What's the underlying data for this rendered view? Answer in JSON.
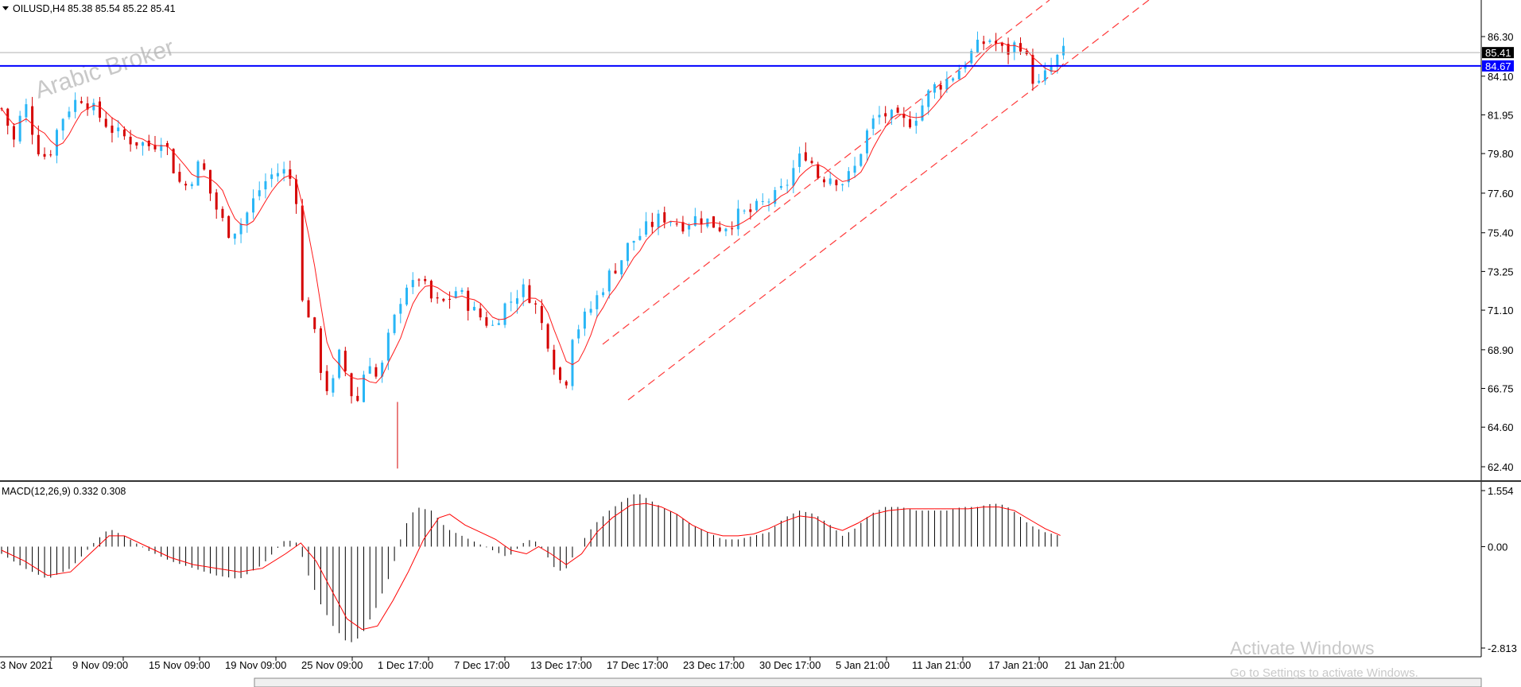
{
  "header": {
    "symbol_label": "OILUSD,H4",
    "ohlc": "85.38 85.54 85.22 85.41"
  },
  "watermark": "Arabic Broker",
  "activation": {
    "title": "Activate Windows",
    "subtitle": "Go to Settings to activate Windows."
  },
  "colors": {
    "bull": "#29b6f6",
    "bear": "#d50000",
    "ma": "#ff1a1a",
    "hline": "#0000ff",
    "channel": "#ff3b3b",
    "histogram": "#000000",
    "signal": "#ff0000"
  },
  "chart_data": [
    {
      "type": "candlestick",
      "symbol": "OILUSD",
      "timeframe": "H4",
      "ylim": [
        62.4,
        87.2
      ],
      "y_ticks": [
        "86.30",
        "84.10",
        "81.95",
        "79.80",
        "77.60",
        "75.40",
        "73.25",
        "71.10",
        "68.90",
        "66.75",
        "64.60",
        "62.40"
      ],
      "x_ticks": [
        "3 Nov 2021",
        "9 Nov 09:00",
        "15 Nov 09:00",
        "19 Nov 09:00",
        "25 Nov 09:00",
        "1 Dec 17:00",
        "7 Dec 17:00",
        "13 Dec 17:00",
        "17 Dec 17:00",
        "23 Dec 17:00",
        "30 Dec 17:00",
        "5 Jan 21:00",
        "11 Jan 21:00",
        "17 Jan 21:00",
        "21 Jan 21:00"
      ],
      "last_price": 85.41,
      "last_price_label": "85.41",
      "horizontal_line": 84.67,
      "horizontal_line_label": "84.67",
      "moving_average": true,
      "close_path": [
        [
          0,
          82.3
        ],
        [
          8,
          80.5
        ],
        [
          15,
          82.7
        ],
        [
          23,
          80.2
        ],
        [
          30,
          79.5
        ],
        [
          38,
          81.6
        ],
        [
          45,
          82.5
        ],
        [
          53,
          83.0
        ],
        [
          60,
          82.2
        ],
        [
          68,
          81.5
        ],
        [
          75,
          80.9
        ],
        [
          83,
          80.6
        ],
        [
          90,
          80.4
        ],
        [
          98,
          80.2
        ],
        [
          105,
          80.8
        ],
        [
          112,
          79.0
        ],
        [
          118,
          77.8
        ],
        [
          124,
          78.5
        ],
        [
          130,
          79.4
        ],
        [
          136,
          77.6
        ],
        [
          142,
          76.3
        ],
        [
          148,
          75.5
        ],
        [
          154,
          75.7
        ],
        [
          160,
          76.5
        ],
        [
          166,
          77.5
        ],
        [
          170,
          78.1
        ],
        [
          176,
          78.6
        ],
        [
          183,
          78.9
        ],
        [
          188,
          78.4
        ],
        [
          192,
          77.4
        ],
        [
          194,
          74.0
        ],
        [
          196,
          71.5
        ],
        [
          199,
          70.8
        ],
        [
          202,
          71.3
        ],
        [
          205,
          68.8
        ],
        [
          209,
          67.6
        ],
        [
          213,
          66.5
        ],
        [
          217,
          67.2
        ],
        [
          221,
          69.0
        ],
        [
          225,
          67.3
        ],
        [
          229,
          66.2
        ],
        [
          232,
          66.1
        ],
        [
          236,
          67.6
        ],
        [
          241,
          68.5
        ],
        [
          245,
          67.0
        ],
        [
          249,
          68.3
        ],
        [
          253,
          69.9
        ],
        [
          257,
          70.8
        ],
        [
          261,
          72.1
        ],
        [
          265,
          72.7
        ],
        [
          269,
          72.3
        ],
        [
          272,
          73.0
        ],
        [
          276,
          72.3
        ],
        [
          280,
          71.7
        ],
        [
          285,
          71.4
        ],
        [
          290,
          71.6
        ],
        [
          296,
          72.2
        ],
        [
          302,
          71.7
        ],
        [
          308,
          71.0
        ],
        [
          314,
          70.6
        ],
        [
          320,
          70.2
        ],
        [
          327,
          71.3
        ],
        [
          333,
          71.7
        ],
        [
          338,
          72.3
        ],
        [
          343,
          72.1
        ],
        [
          348,
          71.3
        ],
        [
          352,
          70.3
        ],
        [
          356,
          69.4
        ],
        [
          360,
          68.2
        ],
        [
          364,
          67.2
        ],
        [
          368,
          67.3
        ],
        [
          372,
          69.8
        ],
        [
          378,
          70.4
        ],
        [
          384,
          71.2
        ],
        [
          391,
          72.3
        ],
        [
          397,
          73.2
        ],
        [
          403,
          73.8
        ],
        [
          409,
          74.8
        ],
        [
          415,
          75.2
        ],
        [
          421,
          75.7
        ],
        [
          427,
          76.1
        ],
        [
          433,
          76.3
        ],
        [
          439,
          76.0
        ],
        [
          445,
          75.9
        ],
        [
          451,
          76.2
        ],
        [
          457,
          76.2
        ],
        [
          463,
          75.9
        ],
        [
          469,
          75.7
        ],
        [
          475,
          76.0
        ],
        [
          481,
          76.4
        ],
        [
          487,
          76.5
        ],
        [
          493,
          76.8
        ],
        [
          499,
          77.2
        ],
        [
          505,
          77.4
        ],
        [
          511,
          78.0
        ],
        [
          515,
          78.8
        ],
        [
          520,
          79.5
        ],
        [
          525,
          79.9
        ],
        [
          529,
          79.1
        ],
        [
          533,
          78.4
        ],
        [
          538,
          78.6
        ],
        [
          543,
          78.5
        ],
        [
          547,
          78.2
        ],
        [
          551,
          78.4
        ],
        [
          556,
          79.0
        ],
        [
          560,
          80.0
        ],
        [
          565,
          81.2
        ],
        [
          570,
          81.8
        ],
        [
          575,
          82.0
        ],
        [
          580,
          81.8
        ],
        [
          585,
          81.6
        ],
        [
          589,
          81.5
        ],
        [
          594,
          81.7
        ],
        [
          600,
          82.5
        ],
        [
          606,
          83.4
        ],
        [
          612,
          83.7
        ],
        [
          618,
          84.0
        ],
        [
          624,
          84.5
        ],
        [
          630,
          85.2
        ],
        [
          636,
          85.7
        ],
        [
          642,
          86.1
        ],
        [
          646,
          86.2
        ],
        [
          650,
          85.6
        ],
        [
          655,
          85.4
        ],
        [
          659,
          85.8
        ],
        [
          664,
          85.9
        ],
        [
          668,
          85.0
        ],
        [
          672,
          84.0
        ],
        [
          676,
          83.6
        ],
        [
          680,
          84.1
        ],
        [
          684,
          84.6
        ],
        [
          688,
          85.1
        ],
        [
          692,
          85.4
        ]
      ]
    },
    {
      "type": "bar",
      "name": "MACD(12,26,9)",
      "indicator_label": "MACD(12,26,9) 0.332 0.308",
      "main_value": 0.332,
      "signal_value": 0.308,
      "ylim": [
        -2.813,
        1.554
      ],
      "y_ticks": [
        "1.554",
        "0.00",
        "-2.813"
      ],
      "histogram_path": [
        [
          0,
          -0.2
        ],
        [
          15,
          -0.6
        ],
        [
          30,
          -0.9
        ],
        [
          45,
          -0.6
        ],
        [
          60,
          0.1
        ],
        [
          70,
          0.5
        ],
        [
          80,
          0.3
        ],
        [
          95,
          -0.1
        ],
        [
          110,
          -0.4
        ],
        [
          125,
          -0.6
        ],
        [
          140,
          -0.8
        ],
        [
          155,
          -0.9
        ],
        [
          170,
          -0.5
        ],
        [
          185,
          0.2
        ],
        [
          193,
          0.1
        ],
        [
          200,
          -0.8
        ],
        [
          208,
          -1.6
        ],
        [
          216,
          -2.2
        ],
        [
          226,
          -2.7
        ],
        [
          234,
          -2.5
        ],
        [
          244,
          -1.7
        ],
        [
          254,
          -0.7
        ],
        [
          262,
          0.5
        ],
        [
          270,
          1.1
        ],
        [
          280,
          1.0
        ],
        [
          290,
          0.5
        ],
        [
          300,
          0.3
        ],
        [
          310,
          0.1
        ],
        [
          320,
          -0.1
        ],
        [
          330,
          -0.3
        ],
        [
          340,
          0.1
        ],
        [
          345,
          0.2
        ],
        [
          350,
          0.1
        ],
        [
          356,
          -0.3
        ],
        [
          362,
          -0.7
        ],
        [
          368,
          -0.6
        ],
        [
          376,
          0.0
        ],
        [
          386,
          0.6
        ],
        [
          396,
          1.0
        ],
        [
          406,
          1.3
        ],
        [
          414,
          1.5
        ],
        [
          422,
          1.3
        ],
        [
          430,
          1.1
        ],
        [
          440,
          0.9
        ],
        [
          450,
          0.6
        ],
        [
          460,
          0.4
        ],
        [
          470,
          0.2
        ],
        [
          480,
          0.2
        ],
        [
          490,
          0.3
        ],
        [
          500,
          0.4
        ],
        [
          510,
          0.8
        ],
        [
          520,
          1.0
        ],
        [
          530,
          0.9
        ],
        [
          540,
          0.6
        ],
        [
          548,
          0.3
        ],
        [
          556,
          0.5
        ],
        [
          566,
          0.9
        ],
        [
          576,
          1.1
        ],
        [
          586,
          1.1
        ],
        [
          596,
          1.0
        ],
        [
          606,
          1.0
        ],
        [
          616,
          1.0
        ],
        [
          626,
          1.1
        ],
        [
          636,
          1.1
        ],
        [
          646,
          1.2
        ],
        [
          654,
          1.15
        ],
        [
          662,
          0.9
        ],
        [
          670,
          0.6
        ],
        [
          680,
          0.4
        ],
        [
          690,
          0.3
        ]
      ],
      "signal_path": [
        [
          0,
          -0.1
        ],
        [
          15,
          -0.4
        ],
        [
          30,
          -0.8
        ],
        [
          45,
          -0.7
        ],
        [
          60,
          -0.1
        ],
        [
          70,
          0.3
        ],
        [
          80,
          0.3
        ],
        [
          95,
          0.0
        ],
        [
          110,
          -0.3
        ],
        [
          125,
          -0.5
        ],
        [
          140,
          -0.6
        ],
        [
          155,
          -0.7
        ],
        [
          170,
          -0.6
        ],
        [
          185,
          -0.2
        ],
        [
          195,
          0.1
        ],
        [
          205,
          -0.4
        ],
        [
          215,
          -1.2
        ],
        [
          225,
          -2.0
        ],
        [
          235,
          -2.3
        ],
        [
          245,
          -2.2
        ],
        [
          255,
          -1.5
        ],
        [
          265,
          -0.7
        ],
        [
          275,
          0.2
        ],
        [
          285,
          0.8
        ],
        [
          292,
          0.9
        ],
        [
          302,
          0.6
        ],
        [
          312,
          0.4
        ],
        [
          322,
          0.2
        ],
        [
          332,
          -0.1
        ],
        [
          342,
          -0.2
        ],
        [
          350,
          0.0
        ],
        [
          358,
          -0.2
        ],
        [
          368,
          -0.5
        ],
        [
          378,
          -0.2
        ],
        [
          388,
          0.4
        ],
        [
          398,
          0.8
        ],
        [
          410,
          1.15
        ],
        [
          420,
          1.2
        ],
        [
          430,
          1.1
        ],
        [
          440,
          0.9
        ],
        [
          450,
          0.6
        ],
        [
          460,
          0.4
        ],
        [
          470,
          0.3
        ],
        [
          480,
          0.3
        ],
        [
          490,
          0.35
        ],
        [
          500,
          0.5
        ],
        [
          510,
          0.7
        ],
        [
          520,
          0.85
        ],
        [
          530,
          0.8
        ],
        [
          540,
          0.55
        ],
        [
          548,
          0.45
        ],
        [
          558,
          0.65
        ],
        [
          568,
          0.9
        ],
        [
          578,
          1.0
        ],
        [
          590,
          1.05
        ],
        [
          600,
          1.05
        ],
        [
          610,
          1.05
        ],
        [
          620,
          1.05
        ],
        [
          630,
          1.05
        ],
        [
          640,
          1.1
        ],
        [
          650,
          1.1
        ],
        [
          660,
          1.0
        ],
        [
          670,
          0.75
        ],
        [
          680,
          0.5
        ],
        [
          690,
          0.31
        ]
      ]
    }
  ]
}
